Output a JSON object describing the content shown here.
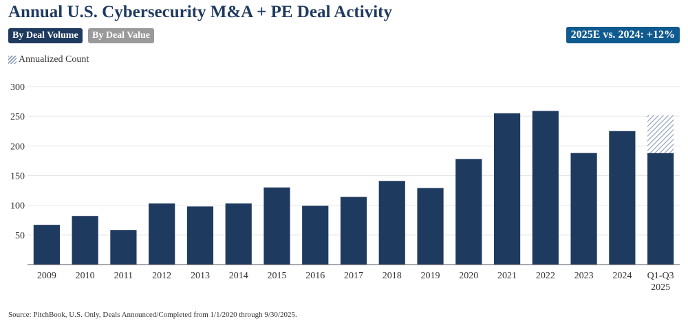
{
  "header": {
    "title": "Annual U.S. Cybersecurity M&A + PE Deal Activity",
    "toggle_volume": "By Deal Volume",
    "toggle_value": "By Deal Value",
    "badge": "2025E vs. 2024: +12%"
  },
  "legend": {
    "annualized_label": "Annualized Count"
  },
  "footer": {
    "source": "Source: PitchBook, U.S. Only, Deals Announced/Completed from 1/1/2020 through 9/30/2025."
  },
  "colors": {
    "bar": "#1f3a5f",
    "hatch": "#8a9bb8",
    "badge": "#0f5a8f",
    "inactive_toggle": "#9a9a9a"
  },
  "chart_data": {
    "type": "bar",
    "title": "Annual U.S. Cybersecurity M&A + PE Deal Activity",
    "categories": [
      "2009",
      "2010",
      "2011",
      "2012",
      "2013",
      "2014",
      "2015",
      "2016",
      "2017",
      "2018",
      "2019",
      "2020",
      "2021",
      "2022",
      "2023",
      "2024",
      "Q1-Q3 2025"
    ],
    "series": [
      {
        "values": [
          67,
          82,
          58,
          103,
          98,
          103,
          130,
          99,
          114,
          141,
          129,
          178,
          255,
          259,
          188,
          225,
          188
        ]
      },
      {
        "name": "Annualized Count",
        "values": [
          0,
          0,
          0,
          0,
          0,
          0,
          0,
          0,
          0,
          0,
          0,
          0,
          0,
          0,
          0,
          0,
          64
        ],
        "stacked": true,
        "pattern": "hatched"
      }
    ],
    "yticks": [
      50,
      100,
      150,
      200,
      250,
      300
    ],
    "ylim": [
      0,
      300
    ],
    "grid": true,
    "legend_position": "top-left"
  }
}
